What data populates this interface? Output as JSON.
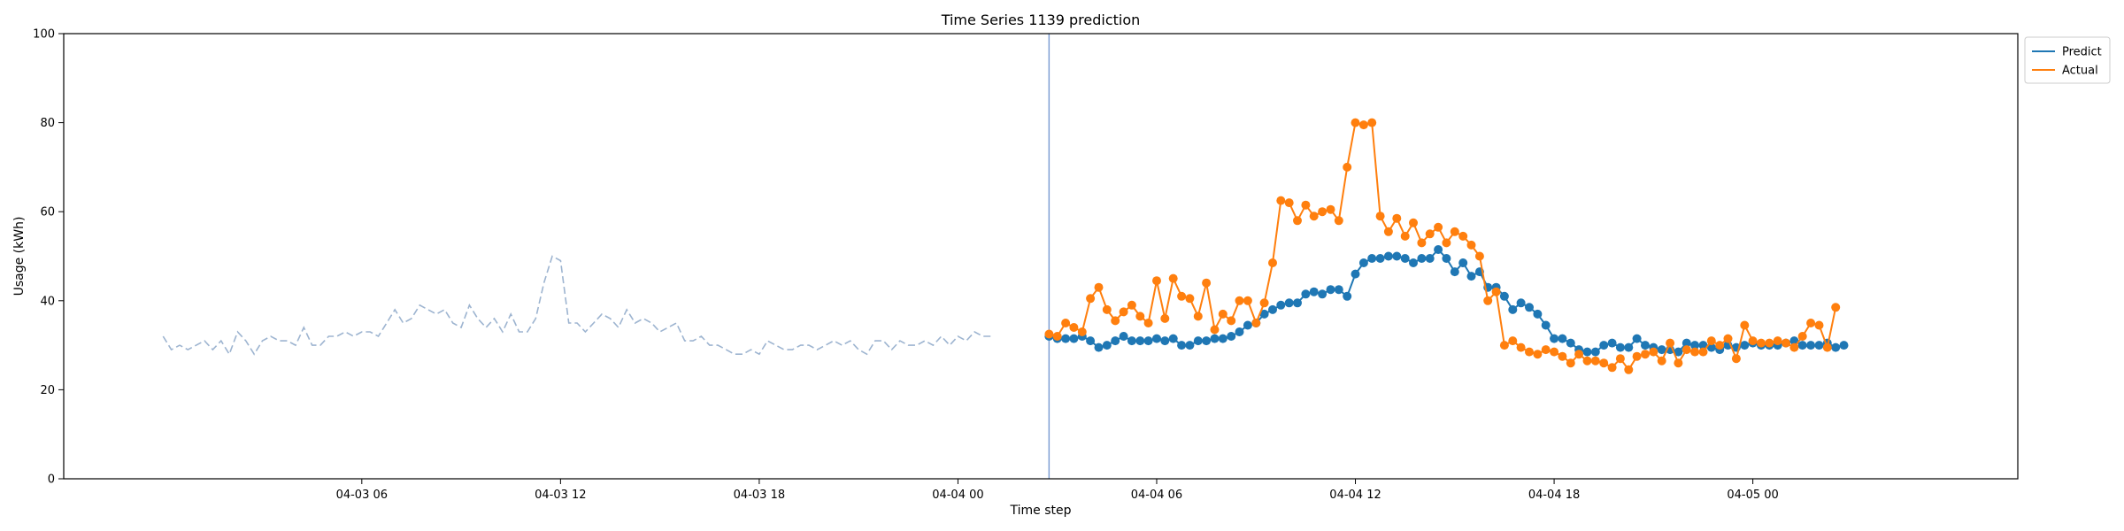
{
  "chart_data": {
    "type": "line",
    "title": "Time Series 1139 prediction",
    "xlabel": "Time step",
    "ylabel": "Usage (kWh)",
    "ylim": [
      0,
      100
    ],
    "yticks": [
      0,
      20,
      40,
      60,
      80,
      100
    ],
    "xlim": [
      "2024-04-02 21:00",
      "2024-04-05 08:00"
    ],
    "xticks": [
      {
        "x": "2024-04-03 06:00",
        "label": "04-03 06"
      },
      {
        "x": "2024-04-03 12:00",
        "label": "04-03 12"
      },
      {
        "x": "2024-04-03 18:00",
        "label": "04-03 18"
      },
      {
        "x": "2024-04-04 00:00",
        "label": "04-04 00"
      },
      {
        "x": "2024-04-04 06:00",
        "label": "04-04 06"
      },
      {
        "x": "2024-04-04 12:00",
        "label": "04-04 12"
      },
      {
        "x": "2024-04-04 18:00",
        "label": "04-04 18"
      },
      {
        "x": "2024-04-05 00:00",
        "label": "04-05 00"
      }
    ],
    "grid": false,
    "legend_position": "outside-top-right",
    "forecast_start": "2024-04-04 02:45",
    "series": [
      {
        "name": "",
        "role": "history",
        "style": "dashed",
        "color": "#9db4d0",
        "x_start": "2024-04-03 00:00",
        "x_step_minutes": 15,
        "values": [
          32,
          29,
          30,
          29,
          30,
          31,
          29,
          31,
          28,
          33,
          31,
          28,
          31,
          32,
          31,
          31,
          30,
          34,
          30,
          30,
          32,
          32,
          33,
          32,
          33,
          33,
          32,
          35,
          38,
          35,
          36,
          39,
          38,
          37,
          38,
          35,
          34,
          39,
          36,
          34,
          36,
          33,
          37,
          33,
          33,
          36,
          44,
          50,
          49,
          35,
          35,
          33,
          35,
          37,
          36,
          34,
          38,
          35,
          36,
          35,
          33,
          34,
          35,
          31,
          31,
          32,
          30,
          30,
          29,
          28,
          28,
          29,
          28,
          31,
          30,
          29,
          29,
          30,
          30,
          29,
          30,
          31,
          30,
          31,
          29,
          28,
          31,
          31,
          29,
          31,
          30,
          30,
          31,
          30,
          32,
          30,
          32,
          31,
          33,
          32,
          32
        ]
      },
      {
        "name": "Predict",
        "role": "forecast",
        "style": "line-markers",
        "color": "#1f77b4",
        "x_start": "2024-04-04 02:45",
        "x_step_minutes": 15,
        "values": [
          32,
          31.5,
          31.5,
          31.5,
          32,
          31,
          29.5,
          30,
          31,
          32,
          31,
          31,
          31,
          31.5,
          31,
          31.5,
          30,
          30,
          31,
          31,
          31.5,
          31.5,
          32,
          33,
          34.5,
          35,
          37,
          38,
          39,
          39.5,
          39.5,
          41.5,
          42,
          41.5,
          42.5,
          42.5,
          41,
          46,
          48.5,
          49.5,
          49.5,
          50,
          50,
          49.5,
          48.5,
          49.5,
          49.5,
          51.5,
          49.5,
          46.5,
          48.5,
          45.5,
          46.5,
          43,
          43,
          41,
          38,
          39.5,
          38.5,
          37,
          34.5,
          31.5,
          31.5,
          30.5,
          29,
          28.5,
          28.5,
          30,
          30.5,
          29.5,
          29.5,
          31.5,
          30,
          29.5,
          29,
          29,
          28.5,
          30.5,
          30,
          30,
          29.5,
          29,
          30,
          29.5,
          30,
          30.5,
          30,
          30,
          30,
          30.5,
          31,
          30,
          30,
          30,
          30.5,
          29.5,
          30
        ]
      },
      {
        "name": "Actual",
        "role": "actual",
        "style": "line-markers",
        "color": "#ff7f0e",
        "x_start": "2024-04-04 02:45",
        "x_step_minutes": 15,
        "values": [
          32.5,
          32,
          35,
          34,
          33,
          40.5,
          43,
          38,
          35.5,
          37.5,
          39,
          36.5,
          35,
          44.5,
          36,
          45,
          41,
          40.5,
          36.5,
          44,
          33.5,
          37,
          35.5,
          40,
          40,
          35,
          39.5,
          48.5,
          62.5,
          62,
          58,
          61.5,
          59,
          60,
          60.5,
          58,
          70,
          80,
          79.5,
          80,
          59,
          55.5,
          58.5,
          54.5,
          57.5,
          53,
          55,
          56.5,
          53,
          55.5,
          54.5,
          52.5,
          50,
          40,
          42,
          30,
          31,
          29.5,
          28.5,
          28,
          29,
          28.5,
          27.5,
          26,
          28,
          26.5,
          26.5,
          26,
          25,
          27,
          24.5,
          27.5,
          28,
          28.5,
          26.5,
          30.5,
          26,
          29,
          28.5,
          28.5,
          31,
          30,
          31.5,
          27,
          34.5,
          31,
          30.5,
          30.5,
          31,
          30.5,
          29.5,
          32,
          35,
          34.5,
          29.5,
          38.5
        ]
      }
    ]
  }
}
